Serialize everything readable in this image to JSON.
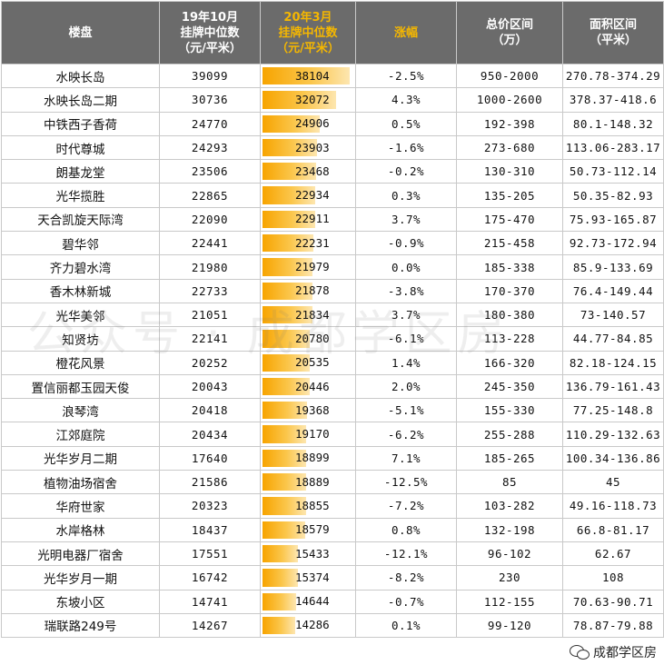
{
  "headers": {
    "name": "楼盘",
    "oct_l1": "19年10月",
    "oct_l2": "挂牌中位数",
    "oct_l3": "（元/平米）",
    "mar_l1": "20年3月",
    "mar_l2": "挂牌中位数",
    "mar_l3": "（元/平米）",
    "change": "涨幅",
    "price_l1": "总价区间",
    "price_l2": "（万）",
    "area_l1": "面积区间",
    "area_l2": "（平米）"
  },
  "bar_max": 38104,
  "rows": [
    {
      "name": "水映长岛",
      "oct": "39099",
      "mar": "38104",
      "change": "-2.5%",
      "price": "950-2000",
      "area": "270.78-374.29"
    },
    {
      "name": "水映长岛二期",
      "oct": "30736",
      "mar": "32072",
      "change": "4.3%",
      "price": "1000-2600",
      "area": "378.37-418.6"
    },
    {
      "name": "中铁西子香荷",
      "oct": "24770",
      "mar": "24906",
      "change": "0.5%",
      "price": "192-398",
      "area": "80.1-148.32"
    },
    {
      "name": "时代尊城",
      "oct": "24293",
      "mar": "23903",
      "change": "-1.6%",
      "price": "273-680",
      "area": "113.06-283.17"
    },
    {
      "name": "朗基龙堂",
      "oct": "23506",
      "mar": "23468",
      "change": "-0.2%",
      "price": "130-310",
      "area": "50.73-112.14"
    },
    {
      "name": "光华揽胜",
      "oct": "22865",
      "mar": "22934",
      "change": "0.3%",
      "price": "135-205",
      "area": "50.35-82.93"
    },
    {
      "name": "天合凯旋天际湾",
      "oct": "22090",
      "mar": "22911",
      "change": "3.7%",
      "price": "175-470",
      "area": "75.93-165.87"
    },
    {
      "name": "碧华邻",
      "oct": "22441",
      "mar": "22231",
      "change": "-0.9%",
      "price": "215-458",
      "area": "92.73-172.94"
    },
    {
      "name": "齐力碧水湾",
      "oct": "21980",
      "mar": "21979",
      "change": "0.0%",
      "price": "185-338",
      "area": "85.9-133.69"
    },
    {
      "name": "香木林新城",
      "oct": "22733",
      "mar": "21878",
      "change": "-3.8%",
      "price": "170-370",
      "area": "76.4-149.44"
    },
    {
      "name": "光华美邻",
      "oct": "21051",
      "mar": "21834",
      "change": "3.7%",
      "price": "180-380",
      "area": "73-140.57"
    },
    {
      "name": "知贤坊",
      "oct": "22141",
      "mar": "20780",
      "change": "-6.1%",
      "price": "113-228",
      "area": "44.77-84.85"
    },
    {
      "name": "橙花风景",
      "oct": "20252",
      "mar": "20535",
      "change": "1.4%",
      "price": "166-320",
      "area": "82.18-124.15"
    },
    {
      "name": "置信丽都玉园天俊",
      "oct": "20043",
      "mar": "20446",
      "change": "2.0%",
      "price": "245-350",
      "area": "136.79-161.43"
    },
    {
      "name": "浪琴湾",
      "oct": "20418",
      "mar": "19368",
      "change": "-5.1%",
      "price": "155-330",
      "area": "77.25-148.8"
    },
    {
      "name": "江郊庭院",
      "oct": "20434",
      "mar": "19170",
      "change": "-6.2%",
      "price": "255-288",
      "area": "110.29-132.63"
    },
    {
      "name": "光华岁月二期",
      "oct": "17640",
      "mar": "18899",
      "change": "7.1%",
      "price": "185-265",
      "area": "100.34-136.86"
    },
    {
      "name": "植物油场宿舍",
      "oct": "21586",
      "mar": "18889",
      "change": "-12.5%",
      "price": "85",
      "area": "45"
    },
    {
      "name": "华府世家",
      "oct": "20323",
      "mar": "18855",
      "change": "-7.2%",
      "price": "103-282",
      "area": "49.16-118.73"
    },
    {
      "name": "水岸格林",
      "oct": "18437",
      "mar": "18579",
      "change": "0.8%",
      "price": "132-198",
      "area": "66.8-81.17"
    },
    {
      "name": "光明电器厂宿舍",
      "oct": "17551",
      "mar": "15433",
      "change": "-12.1%",
      "price": "96-102",
      "area": "62.67"
    },
    {
      "name": "光华岁月一期",
      "oct": "16742",
      "mar": "15374",
      "change": "-8.2%",
      "price": "230",
      "area": "108"
    },
    {
      "name": "东坡小区",
      "oct": "14741",
      "mar": "14644",
      "change": "-0.7%",
      "price": "112-155",
      "area": "70.63-90.71"
    },
    {
      "name": "瑞联路249号",
      "oct": "14267",
      "mar": "14286",
      "change": "0.1%",
      "price": "99-120",
      "area": "78.87-79.88"
    }
  ],
  "watermark": "公众号 · 成都学区房",
  "brand": "成都学区房",
  "brand_icon": "wechat-icon",
  "colors": {
    "header_bg": "#6b6b6b",
    "header_highlight": "#f5b700",
    "bar": "#f7a400"
  }
}
